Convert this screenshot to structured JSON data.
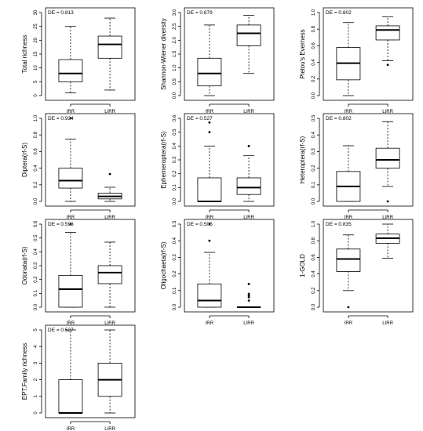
{
  "chart_data": [
    {
      "type": "box",
      "ylabel": "Total richness",
      "annotation": "DE = 0.813",
      "categories": [
        "IRR",
        "LIRR"
      ],
      "ylim": [
        0,
        30
      ],
      "yticks": [
        0,
        5,
        10,
        15,
        20,
        25,
        30
      ],
      "yticklabels": [
        "0",
        "5",
        "10",
        "15",
        "20",
        "25",
        "30"
      ],
      "boxes": [
        {
          "min": 1,
          "q1": 5,
          "median": 8,
          "q3": 13,
          "max": 25,
          "outliers": []
        },
        {
          "min": 2,
          "q1": 13.5,
          "median": 18.5,
          "q3": 21.5,
          "max": 28,
          "outliers": []
        }
      ]
    },
    {
      "type": "box",
      "ylabel": "Shannon-Wiener diversity",
      "annotation": "DE = 0.879",
      "categories": [
        "IRR",
        "LIRR"
      ],
      "ylim": [
        0,
        3
      ],
      "yticks": [
        0,
        0.5,
        1,
        1.5,
        2,
        2.5,
        3
      ],
      "yticklabels": [
        "0.0",
        "0.5",
        "1.0",
        "1.5",
        "2.0",
        "2.5",
        "3.0"
      ],
      "boxes": [
        {
          "min": 0,
          "q1": 0.35,
          "median": 0.8,
          "q3": 1.35,
          "max": 2.55,
          "outliers": []
        },
        {
          "min": 0.8,
          "q1": 1.8,
          "median": 2.25,
          "q3": 2.55,
          "max": 2.9,
          "outliers": []
        }
      ]
    },
    {
      "type": "box",
      "ylabel": "Pielou's Everness",
      "annotation": "DE = 0.802",
      "categories": [
        "IRR",
        "LIRR"
      ],
      "ylim": [
        0,
        1
      ],
      "yticks": [
        0,
        0.2,
        0.4,
        0.6,
        0.8,
        1
      ],
      "yticklabels": [
        "0.0",
        "0.2",
        "0.4",
        "0.6",
        "0.8",
        "1.0"
      ],
      "boxes": [
        {
          "min": 0,
          "q1": 0.19,
          "median": 0.39,
          "q3": 0.58,
          "max": 0.88,
          "outliers": []
        },
        {
          "min": 0.42,
          "q1": 0.67,
          "median": 0.79,
          "q3": 0.84,
          "max": 0.95,
          "outliers": [
            0.37
          ]
        }
      ]
    },
    {
      "type": "box",
      "ylabel": "Diptera(rf-S)",
      "annotation": "DE = 0.934",
      "categories": [
        "IRR",
        "LIRR"
      ],
      "ylim": [
        0,
        1
      ],
      "yticks": [
        0,
        0.2,
        0.4,
        0.6,
        0.8,
        1
      ],
      "yticklabels": [
        "0.0",
        "0.2",
        "0.4",
        "0.6",
        "0.8",
        "1.0"
      ],
      "boxes": [
        {
          "min": 0,
          "q1": 0.16,
          "median": 0.25,
          "q3": 0.4,
          "max": 0.75,
          "outliers": [
            1.0
          ]
        },
        {
          "min": 0,
          "q1": 0.03,
          "median": 0.06,
          "q3": 0.1,
          "max": 0.17,
          "outliers": [
            0.33
          ]
        }
      ]
    },
    {
      "type": "box",
      "ylabel": "Ephemeroptera(rf-S)",
      "annotation": "DE = 0.527",
      "categories": [
        "IRR",
        "LIRR"
      ],
      "ylim": [
        0,
        0.6
      ],
      "yticks": [
        0,
        0.1,
        0.2,
        0.3,
        0.4,
        0.5,
        0.6
      ],
      "yticklabels": [
        "0.0",
        "0.1",
        "0.2",
        "0.3",
        "0.4",
        "0.5",
        "0.6"
      ],
      "boxes": [
        {
          "min": 0,
          "q1": 0,
          "median": 0,
          "q3": 0.17,
          "max": 0.4,
          "outliers": [
            0.5,
            0.57
          ]
        },
        {
          "min": 0,
          "q1": 0.05,
          "median": 0.1,
          "q3": 0.17,
          "max": 0.33,
          "outliers": [
            0.4
          ]
        }
      ]
    },
    {
      "type": "box",
      "ylabel": "Heteroptera(rf-S)",
      "annotation": "DE = 0.802",
      "categories": [
        "IRR",
        "LIRR"
      ],
      "ylim": [
        0,
        0.5
      ],
      "yticks": [
        0,
        0.1,
        0.2,
        0.3,
        0.4,
        0.5
      ],
      "yticklabels": [
        "0.0",
        "0.1",
        "0.2",
        "0.3",
        "0.4",
        "0.5"
      ],
      "boxes": [
        {
          "min": 0,
          "q1": 0,
          "median": 0.09,
          "q3": 0.18,
          "max": 0.335,
          "outliers": []
        },
        {
          "min": 0.09,
          "q1": 0.2,
          "median": 0.25,
          "q3": 0.32,
          "max": 0.48,
          "outliers": [
            0
          ]
        }
      ]
    },
    {
      "type": "box",
      "ylabel": "Odonata(rf-S)",
      "annotation": "DE = 0.593",
      "categories": [
        "IRR",
        "LIRR"
      ],
      "ylim": [
        0,
        0.6
      ],
      "yticks": [
        0,
        0.1,
        0.2,
        0.3,
        0.4,
        0.5,
        0.6
      ],
      "yticklabels": [
        "0.0",
        "0.1",
        "0.2",
        "0.3",
        "0.4",
        "0.5",
        "0.6"
      ],
      "boxes": [
        {
          "min": 0,
          "q1": 0,
          "median": 0.13,
          "q3": 0.23,
          "max": 0.54,
          "outliers": [
            0.6
          ]
        },
        {
          "min": 0,
          "q1": 0.17,
          "median": 0.25,
          "q3": 0.3,
          "max": 0.47,
          "outliers": []
        }
      ]
    },
    {
      "type": "box",
      "ylabel": "Oligochaeta(rf-S)",
      "annotation": "DE = 0.505",
      "categories": [
        "IRR",
        "LIRR"
      ],
      "ylim": [
        0,
        0.5
      ],
      "yticks": [
        0,
        0.1,
        0.2,
        0.3,
        0.4,
        0.5
      ],
      "yticklabels": [
        "0.0",
        "0.1",
        "0.2",
        "0.3",
        "0.4",
        "0.5"
      ],
      "boxes": [
        {
          "min": 0,
          "q1": 0,
          "median": 0.04,
          "q3": 0.14,
          "max": 0.33,
          "outliers": [
            0.4,
            0.5
          ]
        },
        {
          "min": 0,
          "q1": 0,
          "median": 0,
          "q3": 0,
          "max": 0,
          "outliers": [
            0.04,
            0.06,
            0.07,
            0.08,
            0.14
          ]
        }
      ]
    },
    {
      "type": "box",
      "ylabel": "1-GOLD",
      "annotation": "DE = 0.835",
      "categories": [
        "IRR",
        "LIRR"
      ],
      "ylim": [
        0,
        1
      ],
      "yticks": [
        0,
        0.2,
        0.4,
        0.6,
        0.8,
        1
      ],
      "yticklabels": [
        "0.0",
        "0.2",
        "0.4",
        "0.6",
        "0.8",
        "1.0"
      ],
      "boxes": [
        {
          "min": 0.2,
          "q1": 0.43,
          "median": 0.58,
          "q3": 0.7,
          "max": 0.87,
          "outliers": [
            0.0
          ]
        },
        {
          "min": 0.59,
          "q1": 0.77,
          "median": 0.83,
          "q3": 0.88,
          "max": 1.0,
          "outliers": []
        }
      ]
    },
    {
      "type": "box",
      "ylabel": "EPT.Family richness",
      "annotation": "DE = 0.527",
      "categories": [
        "IRR",
        "LIRR"
      ],
      "ylim": [
        0,
        5
      ],
      "yticks": [
        0,
        1,
        2,
        3,
        4,
        5
      ],
      "yticklabels": [
        "0",
        "1",
        "2",
        "3",
        "4",
        "5"
      ],
      "boxes": [
        {
          "min": 0,
          "q1": 0,
          "median": 0,
          "q3": 2,
          "max": 5,
          "outliers": []
        },
        {
          "min": 0,
          "q1": 1,
          "median": 2,
          "q3": 3,
          "max": 5,
          "outliers": []
        }
      ]
    }
  ]
}
